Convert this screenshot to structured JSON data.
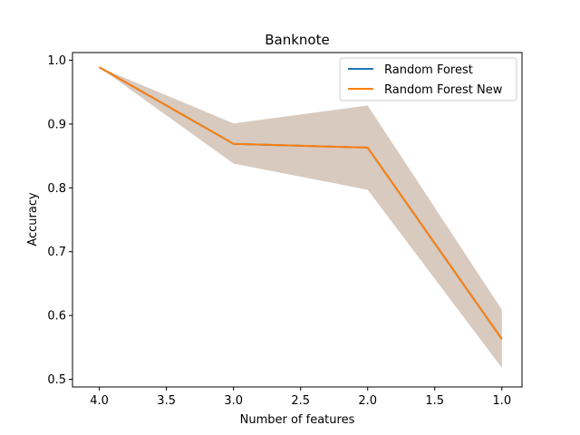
{
  "chart_data": {
    "type": "line",
    "title": "Banknote",
    "xlabel": "Number of features",
    "ylabel": "Accuracy",
    "x": [
      4.0,
      3.0,
      2.0,
      1.0
    ],
    "xlim": [
      4.2,
      0.85
    ],
    "ylim": [
      0.488,
      1.012
    ],
    "x_inverted": true,
    "xticks": [
      4.0,
      3.5,
      3.0,
      2.5,
      2.0,
      1.5,
      1.0
    ],
    "xtick_labels": [
      "4.0",
      "3.5",
      "3.0",
      "2.5",
      "2.0",
      "1.5",
      "1.0"
    ],
    "yticks": [
      0.5,
      0.6,
      0.7,
      0.8,
      0.9,
      1.0
    ],
    "ytick_labels": [
      "0.5",
      "0.6",
      "0.7",
      "0.8",
      "0.9",
      "1.0"
    ],
    "grid": false,
    "legend": "top-right",
    "series": [
      {
        "name": "Random Forest",
        "values": [
          0.989,
          0.869,
          0.863,
          0.563
        ],
        "color": "#1f77b4"
      },
      {
        "name": "Random Forest New",
        "values": [
          0.989,
          0.869,
          0.863,
          0.563
        ],
        "color": "#ff7f0e"
      }
    ],
    "band": {
      "lower": [
        0.989,
        0.838,
        0.797,
        0.518
      ],
      "upper": [
        0.989,
        0.901,
        0.929,
        0.609
      ],
      "color": "#c8b3a2"
    }
  }
}
